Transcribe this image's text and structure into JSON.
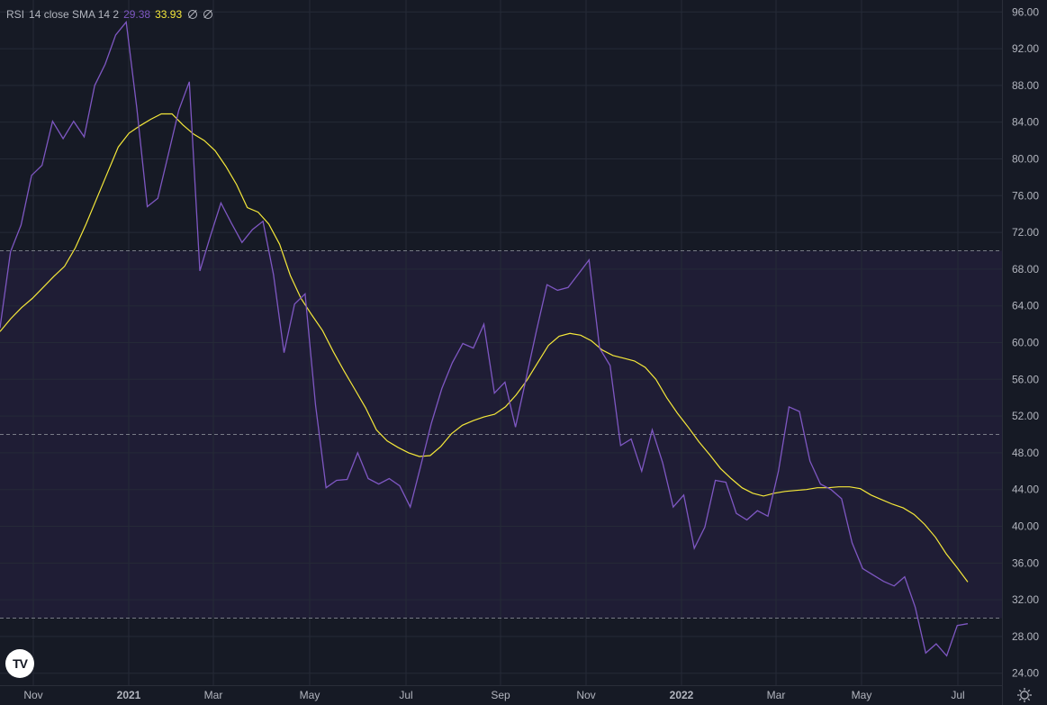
{
  "legend": {
    "name": "RSI",
    "params": "14 close SMA 14 2",
    "rsi_value": "29.38",
    "ma_value": "33.93"
  },
  "colors": {
    "background": "#161a25",
    "rsi": "#7e57c2",
    "ma": "#f5e83a",
    "band": "#1f1d35",
    "grid": "#252a37",
    "dashed": "#787b86",
    "text": "#b2b5be"
  },
  "icons": {
    "logo": "tradingview-logo",
    "settings": "gear-icon"
  },
  "logo_text": "TV",
  "chart_data": {
    "type": "line",
    "title": "RSI 14 close SMA 14 2",
    "xlabel": "",
    "ylabel": "",
    "ylim": [
      22.7,
      97.3
    ],
    "y_ticks": [
      "24.00",
      "28.00",
      "32.00",
      "36.00",
      "40.00",
      "44.00",
      "48.00",
      "52.00",
      "56.00",
      "60.00",
      "64.00",
      "68.00",
      "72.00",
      "76.00",
      "80.00",
      "84.00",
      "88.00",
      "92.00",
      "96.00"
    ],
    "x_ticks": [
      "Nov",
      "2021",
      "Mar",
      "May",
      "Jul",
      "Sep",
      "Nov",
      "2022",
      "Mar",
      "May",
      "Jul"
    ],
    "x_tick_bold": [
      false,
      true,
      false,
      false,
      false,
      false,
      false,
      true,
      false,
      false,
      false
    ],
    "bands": {
      "upper": 70,
      "middle": 50,
      "lower": 30
    },
    "grid": true,
    "legend_position": "top-left",
    "series": [
      {
        "name": "RSI",
        "values": [
          61.6,
          69.9,
          72.8,
          78.2,
          79.3,
          84.1,
          82.2,
          84.1,
          82.4,
          88.0,
          90.3,
          93.5,
          94.9,
          85.6,
          74.8,
          75.7,
          80.5,
          85.3,
          88.4,
          67.8,
          71.6,
          75.2,
          73.0,
          70.9,
          72.3,
          73.2,
          67.4,
          58.9,
          64.2,
          65.3,
          53.2,
          44.2,
          45.0,
          45.1,
          48.0,
          45.2,
          44.6,
          45.2,
          44.4,
          42.1,
          46.6,
          51.2,
          55.0,
          57.8,
          59.9,
          59.4,
          62.0,
          54.5,
          55.7,
          50.8,
          56.0,
          61.3,
          66.3,
          65.7,
          66.0,
          67.5,
          69.0,
          59.4,
          57.5,
          48.8,
          49.5,
          46.0,
          50.5,
          46.9,
          42.1,
          43.4,
          37.6,
          39.9,
          45.0,
          44.8,
          41.4,
          40.7,
          41.7,
          41.1,
          46.0,
          53.0,
          52.5,
          47.1,
          44.6,
          44.0,
          43.0,
          38.2,
          35.4,
          34.7,
          34.0,
          33.5,
          34.5,
          31.2,
          26.2,
          27.2,
          25.9,
          29.2,
          29.4
        ]
      },
      {
        "name": "SMA 14",
        "values": [
          61.2,
          62.6,
          63.8,
          64.8,
          66.0,
          67.2,
          68.3,
          70.3,
          72.9,
          75.7,
          78.5,
          81.3,
          82.8,
          83.6,
          84.3,
          84.9,
          84.9,
          83.7,
          82.7,
          82.0,
          80.9,
          79.2,
          77.2,
          74.7,
          74.2,
          72.9,
          70.7,
          67.3,
          64.8,
          63.0,
          61.3,
          59.0,
          56.9,
          54.9,
          52.9,
          50.5,
          49.3,
          48.6,
          48.0,
          47.6,
          47.7,
          48.7,
          50.1,
          51.0,
          51.5,
          51.9,
          52.2,
          53.0,
          54.3,
          55.9,
          57.8,
          59.7,
          60.7,
          61.0,
          60.8,
          60.2,
          59.2,
          58.6,
          58.3,
          58.0,
          57.3,
          56.0,
          54.0,
          52.3,
          50.8,
          49.2,
          47.8,
          46.3,
          45.2,
          44.2,
          43.6,
          43.3,
          43.6,
          43.8,
          43.9,
          44.0,
          44.2,
          44.2,
          44.3,
          44.3,
          44.1,
          43.4,
          42.9,
          42.4,
          42.0,
          41.3,
          40.2,
          38.8,
          37.0,
          35.5,
          33.93
        ]
      }
    ]
  }
}
